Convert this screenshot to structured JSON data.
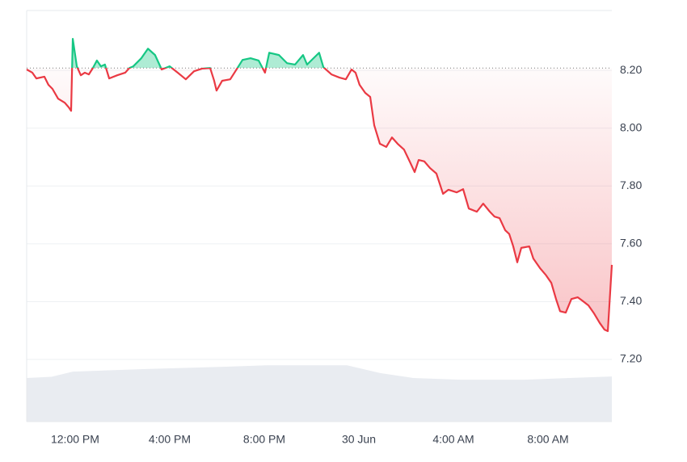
{
  "chart_data": {
    "type": "line",
    "x": [
      -2.05,
      -1.81,
      -1.64,
      -1.3,
      -1.13,
      -0.96,
      -0.72,
      -0.44,
      -0.27,
      -0.17,
      -0.1,
      0.07,
      0.24,
      0.41,
      0.58,
      0.75,
      0.92,
      1.09,
      1.26,
      1.44,
      1.78,
      2.12,
      2.29,
      2.46,
      2.8,
      3.08,
      3.38,
      3.66,
      4.0,
      4.34,
      4.68,
      5.03,
      5.37,
      5.71,
      5.88,
      5.98,
      6.22,
      6.56,
      6.74,
      7.08,
      7.42,
      7.76,
      8.03,
      8.21,
      8.62,
      8.96,
      9.3,
      9.64,
      9.81,
      10.32,
      10.5,
      10.84,
      11.18,
      11.45,
      11.69,
      11.86,
      12.03,
      12.27,
      12.48,
      12.65,
      12.89,
      13.16,
      13.4,
      13.64,
      13.91,
      14.15,
      14.36,
      14.53,
      14.77,
      15.01,
      15.28,
      15.56,
      15.79,
      16.14,
      16.41,
      16.65,
      16.99,
      17.26,
      17.54,
      17.74,
      17.95,
      18.19,
      18.36,
      18.53,
      18.7,
      18.87,
      19.21,
      19.38,
      19.66,
      19.9,
      20.14,
      20.34,
      20.51,
      20.75,
      20.99,
      21.26,
      21.44,
      21.71,
      21.95,
      22.19,
      22.39,
      22.53,
      22.7
    ],
    "values": [
      8.203,
      8.192,
      8.172,
      8.178,
      8.15,
      8.136,
      8.102,
      8.088,
      8.072,
      8.06,
      8.309,
      8.214,
      8.183,
      8.192,
      8.186,
      8.208,
      8.234,
      8.214,
      8.22,
      8.172,
      8.183,
      8.192,
      8.208,
      8.214,
      8.242,
      8.275,
      8.253,
      8.203,
      8.214,
      8.192,
      8.169,
      8.197,
      8.206,
      8.208,
      8.164,
      8.13,
      8.164,
      8.169,
      8.192,
      8.236,
      8.242,
      8.234,
      8.192,
      8.261,
      8.253,
      8.225,
      8.22,
      8.253,
      8.22,
      8.261,
      8.211,
      8.186,
      8.175,
      8.169,
      8.203,
      8.192,
      8.15,
      8.122,
      8.108,
      8.01,
      7.946,
      7.935,
      7.968,
      7.946,
      7.926,
      7.885,
      7.848,
      7.89,
      7.885,
      7.862,
      7.843,
      7.773,
      7.787,
      7.778,
      7.789,
      7.722,
      7.711,
      7.739,
      7.711,
      7.694,
      7.689,
      7.647,
      7.634,
      7.591,
      7.536,
      7.586,
      7.591,
      7.549,
      7.516,
      7.493,
      7.465,
      7.409,
      7.367,
      7.362,
      7.409,
      7.415,
      7.404,
      7.387,
      7.359,
      7.326,
      7.303,
      7.298,
      7.527
    ],
    "baseline": 8.208,
    "up_color": "#16c784",
    "down_color": "#ea3943",
    "volume": {
      "color": "#e9ecf1",
      "x": [
        -2.05,
        -1.0,
        -0.1,
        3.0,
        6.4,
        8.1,
        11.5,
        12.9,
        14.3,
        16.3,
        19.0,
        20.9,
        22.7
      ],
      "values": [
        7.136,
        7.14,
        7.158,
        7.167,
        7.175,
        7.18,
        7.18,
        7.153,
        7.136,
        7.13,
        7.13,
        7.136,
        7.141
      ]
    },
    "xlim": [
      -2.05,
      22.7
    ],
    "ylim": [
      6.985,
      8.407
    ],
    "xticks": [
      {
        "value": 0,
        "label": "12:00 PM"
      },
      {
        "value": 4,
        "label": "4:00 PM"
      },
      {
        "value": 8,
        "label": "8:00 PM"
      },
      {
        "value": 12,
        "label": "30 Jun"
      },
      {
        "value": 16,
        "label": "4:00 AM"
      },
      {
        "value": 20,
        "label": "8:00 AM"
      }
    ],
    "yticks": [
      {
        "value": 7.2,
        "label": "7.20"
      },
      {
        "value": 7.4,
        "label": "7.40"
      },
      {
        "value": 7.6,
        "label": "7.60"
      },
      {
        "value": 7.8,
        "label": "7.80"
      },
      {
        "value": 8.0,
        "label": "8.00"
      },
      {
        "value": 8.2,
        "label": "8.20"
      }
    ],
    "grid": true
  }
}
